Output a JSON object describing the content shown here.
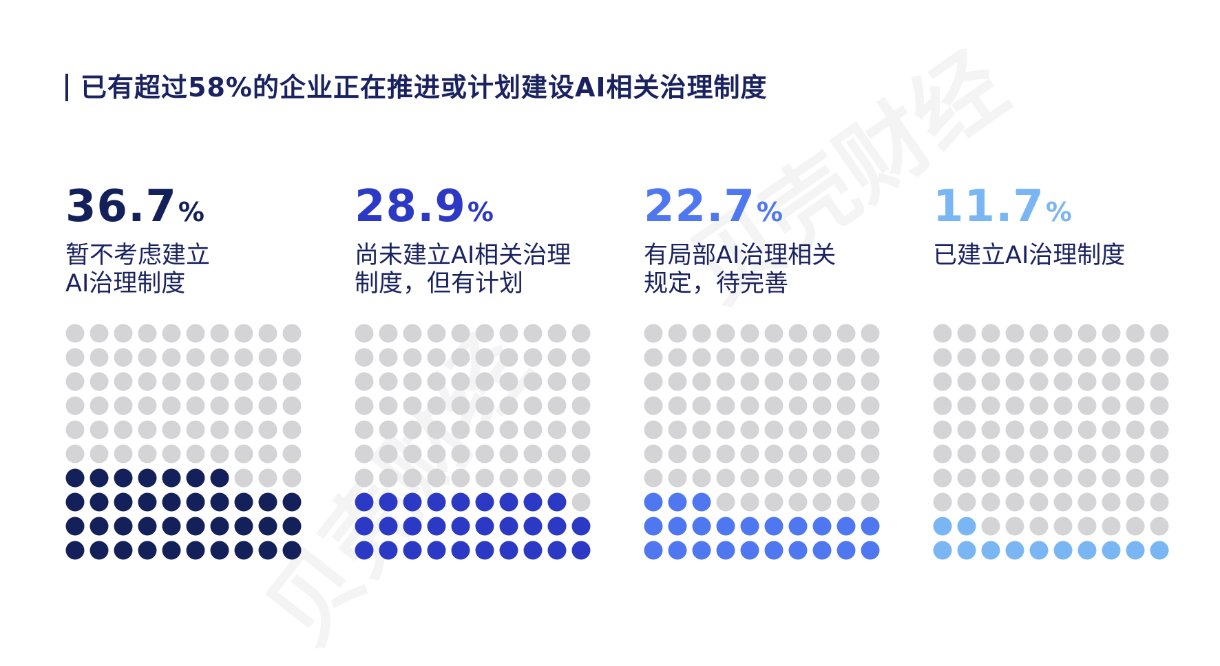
{
  "title": "已有超过58%的企业正在推进或计划建设AI相关治理制度",
  "watermark_text": "贝壳财经",
  "colors": {
    "empty_dot": "#d4d4d6",
    "title": "#1a2260"
  },
  "chart_data": {
    "type": "waffle",
    "grid": {
      "rows": 10,
      "cols": 10
    },
    "title": "已有超过58%的企业正在推进或计划建设AI相关治理制度",
    "series": [
      {
        "value": 36.7,
        "value_text": "36.7",
        "unit": "%",
        "label_line1": "暂不考虑建立",
        "label_line2": "AI治理制度",
        "color": "#14205a",
        "filled_dots": 37
      },
      {
        "value": 28.9,
        "value_text": "28.9",
        "unit": "%",
        "label_line1": "尚未建立AI相关治理",
        "label_line2": "制度，但有计划",
        "color": "#2b39c4",
        "filled_dots": 29
      },
      {
        "value": 22.7,
        "value_text": "22.7",
        "unit": "%",
        "label_line1": "有局部AI治理相关",
        "label_line2": "规定，待完善",
        "color": "#4f77f0",
        "filled_dots": 23
      },
      {
        "value": 11.7,
        "value_text": "11.7",
        "unit": "%",
        "label_line1": "已建立AI治理制度",
        "label_line2": "",
        "color": "#7ab6f4",
        "filled_dots": 12
      }
    ]
  }
}
